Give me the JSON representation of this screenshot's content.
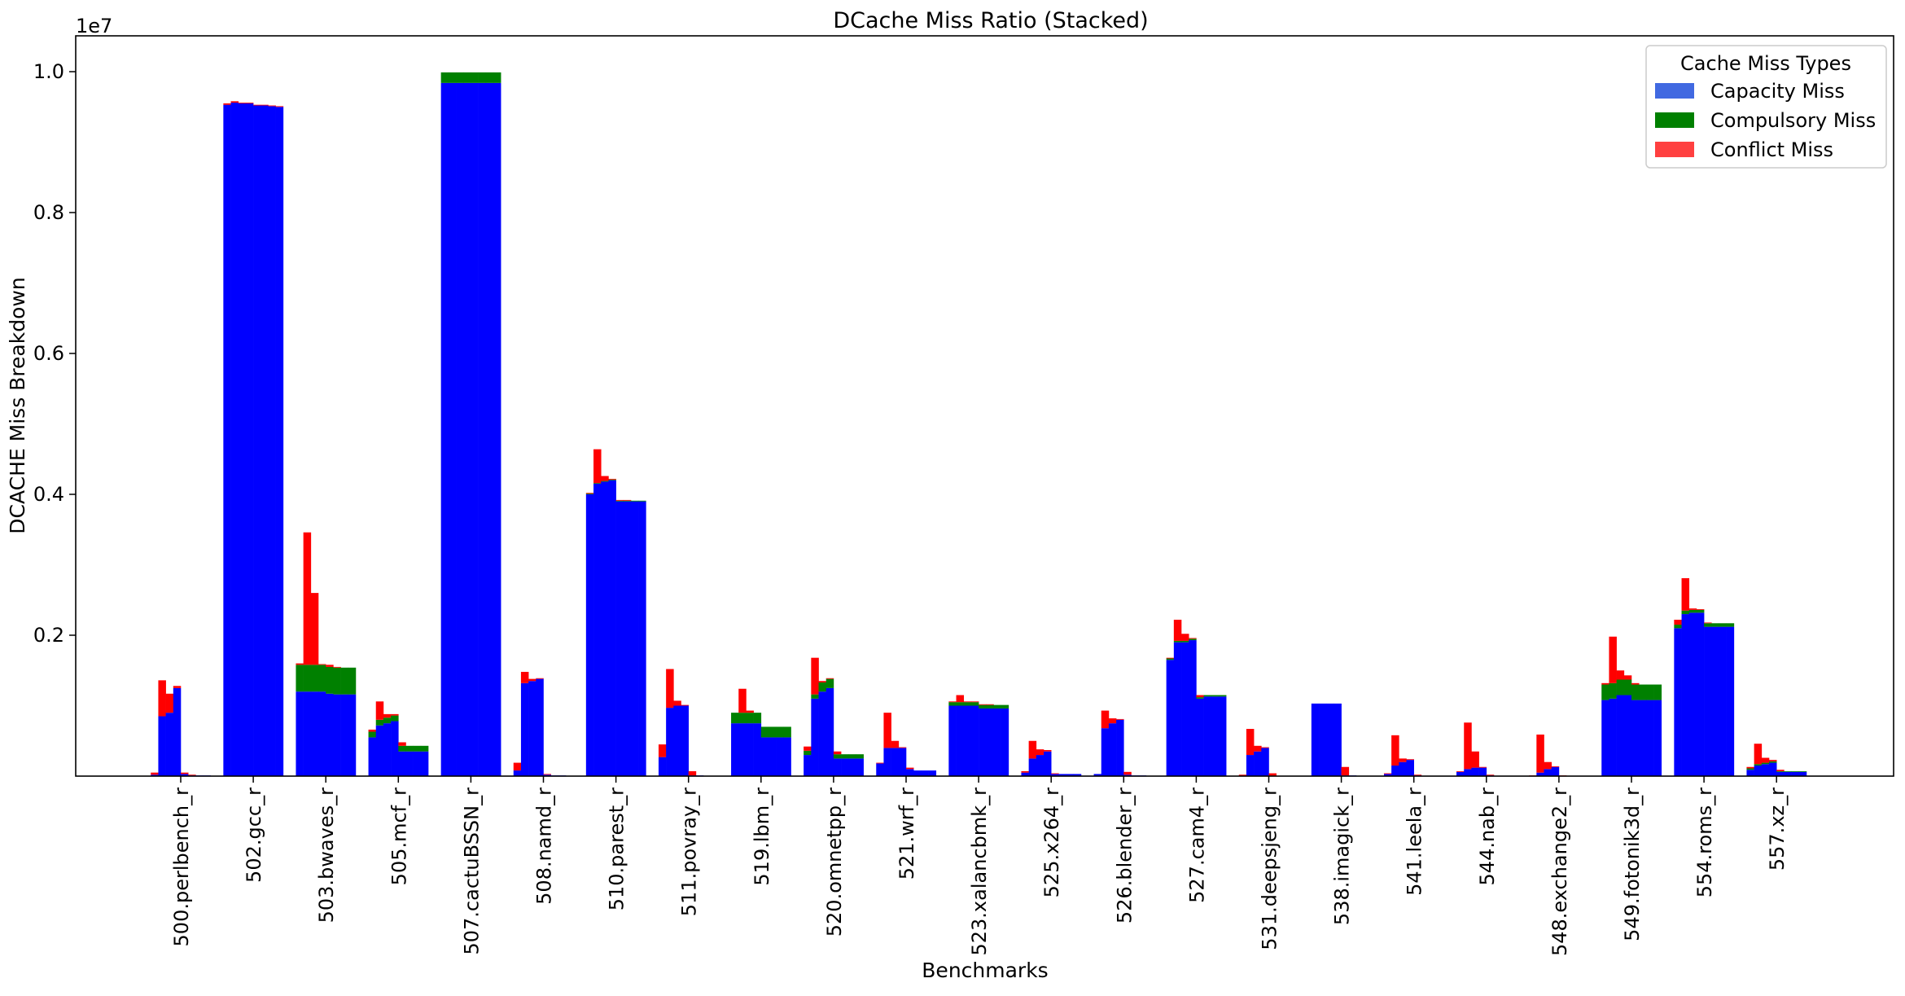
{
  "chart_data": {
    "type": "bar",
    "stacked": true,
    "title": "DCache Miss Ratio (Stacked)",
    "xlabel": "Benchmarks",
    "ylabel": "DCACHE Miss Breakdown",
    "y_offset_label": "1e7",
    "ylim": [
      0,
      1.05
    ],
    "yticks": [
      0.2,
      0.4,
      0.6,
      0.8,
      1.0
    ],
    "ytick_labels": [
      "0.2",
      "0.4",
      "0.6",
      "0.8",
      "1.0"
    ],
    "bars_per_group": 8,
    "legend": {
      "title": "Cache Miss Types",
      "placement": "top-right",
      "entries": [
        {
          "label": "Capacity Miss",
          "color": "#4169e1"
        },
        {
          "label": "Compulsory Miss",
          "color": "#008000"
        },
        {
          "label": "Conflict Miss",
          "color": "#ff4040"
        }
      ]
    },
    "series_colors": {
      "capacity": "#0000ff",
      "compulsory": "#008000",
      "conflict": "#ff0000"
    },
    "categories": [
      "500.perlbench_r",
      "502.gcc_r",
      "503.bwaves_r",
      "505.mcf_r",
      "507.cactuBSSN_r",
      "508.namd_r",
      "510.parest_r",
      "511.povray_r",
      "519.lbm_r",
      "520.omnetpp_r",
      "521.wrf_r",
      "523.xalancbmk_r",
      "525.x264_r",
      "526.blender_r",
      "527.cam4_r",
      "531.deepsjeng_r",
      "538.imagick_r",
      "541.leela_r",
      "544.nab_r",
      "548.exchange2_r",
      "549.fotonik3d_r",
      "554.roms_r",
      "557.xz_r"
    ],
    "groups": [
      {
        "name": "500.perlbench_r",
        "capacity": [
          0.002,
          0.085,
          0.09,
          0.125,
          0.003,
          0.001,
          0.001,
          0.001
        ],
        "compulsory": [
          0,
          0,
          0,
          0,
          0,
          0,
          0,
          0
        ],
        "conflict": [
          0.003,
          0.051,
          0.027,
          0.003,
          0.002,
          0.001,
          0,
          0
        ]
      },
      {
        "name": "502.gcc_r",
        "capacity": [
          0.953,
          0.956,
          0.955,
          0.955,
          0.952,
          0.952,
          0.951,
          0.95
        ],
        "compulsory": [
          0,
          0,
          0,
          0,
          0,
          0,
          0,
          0
        ],
        "conflict": [
          0.002,
          0.002,
          0.001,
          0.001,
          0.001,
          0.001,
          0.001,
          0.001
        ]
      },
      {
        "name": "503.bwaves_r",
        "capacity": [
          0.12,
          0.12,
          0.12,
          0.12,
          0.117,
          0.116,
          0.116,
          0.116
        ],
        "compulsory": [
          0.038,
          0.038,
          0.038,
          0.038,
          0.038,
          0.038,
          0.038,
          0.038
        ],
        "conflict": [
          0.002,
          0.188,
          0.102,
          0.001,
          0.003,
          0.001,
          0,
          0
        ]
      },
      {
        "name": "505.mcf_r",
        "capacity": [
          0.055,
          0.072,
          0.075,
          0.078,
          0.035,
          0.035,
          0.035,
          0.035
        ],
        "compulsory": [
          0.008,
          0.008,
          0.008,
          0.008,
          0.008,
          0.008,
          0.008,
          0.008
        ],
        "conflict": [
          0.003,
          0.026,
          0.005,
          0.002,
          0.005,
          0,
          0,
          0
        ]
      },
      {
        "name": "507.cactuBSSN_r",
        "capacity": [
          0.984,
          0.984,
          0.984,
          0.984,
          0.984,
          0.984,
          0.984,
          0.984
        ],
        "compulsory": [
          0.015,
          0.015,
          0.015,
          0.015,
          0.015,
          0.015,
          0.015,
          0.015
        ],
        "conflict": [
          0,
          0,
          0,
          0,
          0,
          0,
          0,
          0
        ]
      },
      {
        "name": "508.namd_r",
        "capacity": [
          0.008,
          0.132,
          0.135,
          0.138,
          0.002,
          0.001,
          0.001,
          0
        ],
        "compulsory": [
          0,
          0,
          0,
          0,
          0,
          0,
          0,
          0
        ],
        "conflict": [
          0.011,
          0.016,
          0.003,
          0.001,
          0.001,
          0,
          0,
          0
        ]
      },
      {
        "name": "510.parest_r",
        "capacity": [
          0.4,
          0.415,
          0.418,
          0.42,
          0.39,
          0.39,
          0.39,
          0.39
        ],
        "compulsory": [
          0.001,
          0.001,
          0.001,
          0.001,
          0.001,
          0.001,
          0.001,
          0.001
        ],
        "conflict": [
          0.001,
          0.048,
          0.007,
          0.001,
          0.001,
          0.001,
          0,
          0
        ]
      },
      {
        "name": "511.povray_r",
        "capacity": [
          0.027,
          0.097,
          0.1,
          0.1,
          0.001,
          0.001,
          0,
          0
        ],
        "compulsory": [
          0,
          0,
          0,
          0,
          0,
          0,
          0,
          0
        ],
        "conflict": [
          0.018,
          0.055,
          0.007,
          0.001,
          0.006,
          0,
          0,
          0
        ]
      },
      {
        "name": "519.lbm_r",
        "capacity": [
          0.075,
          0.075,
          0.075,
          0.075,
          0.055,
          0.055,
          0.055,
          0.055
        ],
        "compulsory": [
          0.015,
          0.015,
          0.015,
          0.015,
          0.015,
          0.015,
          0.015,
          0.015
        ],
        "conflict": [
          0,
          0.034,
          0.003,
          0,
          0,
          0,
          0,
          0
        ]
      },
      {
        "name": "520.omnetpp_r",
        "capacity": [
          0.03,
          0.11,
          0.12,
          0.125,
          0.025,
          0.025,
          0.025,
          0.025
        ],
        "compulsory": [
          0.006,
          0.006,
          0.013,
          0.013,
          0.006,
          0.006,
          0.006,
          0.006
        ],
        "conflict": [
          0.006,
          0.052,
          0.002,
          0.001,
          0.004,
          0,
          0,
          0
        ]
      },
      {
        "name": "521.wrf_r",
        "capacity": [
          0.018,
          0.04,
          0.04,
          0.04,
          0.01,
          0.008,
          0.008,
          0.008
        ],
        "compulsory": [
          0,
          0,
          0,
          0,
          0,
          0,
          0,
          0
        ],
        "conflict": [
          0.001,
          0.05,
          0.01,
          0.001,
          0.002,
          0,
          0,
          0
        ]
      },
      {
        "name": "523.xalancbmk_r",
        "capacity": [
          0.1,
          0.1,
          0.1,
          0.1,
          0.096,
          0.096,
          0.096,
          0.096
        ],
        "compulsory": [
          0.005,
          0.005,
          0.005,
          0.005,
          0.005,
          0.005,
          0.005,
          0.005
        ],
        "conflict": [
          0.001,
          0.01,
          0.001,
          0.001,
          0.001,
          0.001,
          0,
          0
        ]
      },
      {
        "name": "525.x264_r",
        "capacity": [
          0.005,
          0.025,
          0.03,
          0.035,
          0.003,
          0.003,
          0.003,
          0.003
        ],
        "compulsory": [
          0,
          0,
          0,
          0,
          0,
          0,
          0,
          0
        ],
        "conflict": [
          0.002,
          0.025,
          0.008,
          0.002,
          0.001,
          0,
          0,
          0
        ]
      },
      {
        "name": "526.blender_r",
        "capacity": [
          0.003,
          0.068,
          0.075,
          0.08,
          0.002,
          0.001,
          0.001,
          0
        ],
        "compulsory": [
          0,
          0,
          0,
          0,
          0,
          0,
          0,
          0
        ],
        "conflict": [
          0,
          0.025,
          0.007,
          0.001,
          0.004,
          0,
          0,
          0
        ]
      },
      {
        "name": "527.cam4_r",
        "capacity": [
          0.165,
          0.19,
          0.19,
          0.193,
          0.11,
          0.113,
          0.113,
          0.113
        ],
        "compulsory": [
          0.002,
          0.002,
          0.002,
          0.002,
          0.002,
          0.002,
          0.002,
          0.002
        ],
        "conflict": [
          0.001,
          0.03,
          0.01,
          0.001,
          0.003,
          0,
          0,
          0
        ]
      },
      {
        "name": "531.deepsjeng_r",
        "capacity": [
          0,
          0.03,
          0.035,
          0.04,
          0,
          0,
          0,
          0
        ],
        "compulsory": [
          0,
          0,
          0,
          0,
          0,
          0,
          0,
          0
        ],
        "conflict": [
          0.002,
          0.037,
          0.008,
          0.001,
          0.004,
          0,
          0,
          0
        ]
      },
      {
        "name": "538.imagick_r",
        "capacity": [
          0.103,
          0.103,
          0.103,
          0.103,
          0.001,
          0.001,
          0,
          0
        ],
        "compulsory": [
          0,
          0,
          0,
          0,
          0,
          0,
          0,
          0
        ],
        "conflict": [
          0,
          0,
          0,
          0,
          0.012,
          0,
          0,
          0
        ]
      },
      {
        "name": "541.leela_r",
        "capacity": [
          0.003,
          0.015,
          0.02,
          0.023,
          0.001,
          0,
          0,
          0
        ],
        "compulsory": [
          0,
          0,
          0,
          0,
          0,
          0,
          0,
          0
        ],
        "conflict": [
          0.001,
          0.043,
          0.005,
          0.001,
          0.001,
          0,
          0,
          0
        ]
      },
      {
        "name": "544.nab_r",
        "capacity": [
          0.006,
          0.01,
          0.012,
          0.012,
          0.001,
          0,
          0,
          0
        ],
        "compulsory": [
          0,
          0,
          0,
          0,
          0,
          0,
          0,
          0
        ],
        "conflict": [
          0.001,
          0.066,
          0.023,
          0.001,
          0.001,
          0,
          0,
          0
        ]
      },
      {
        "name": "548.exchange2_r",
        "capacity": [
          0,
          0.005,
          0.01,
          0.013,
          0,
          0,
          0,
          0
        ],
        "compulsory": [
          0,
          0,
          0,
          0,
          0,
          0,
          0,
          0
        ],
        "conflict": [
          0.001,
          0.054,
          0.01,
          0.001,
          0.001,
          0,
          0,
          0
        ]
      },
      {
        "name": "549.fotonik3d_r",
        "capacity": [
          0.108,
          0.11,
          0.115,
          0.115,
          0.108,
          0.108,
          0.108,
          0.108
        ],
        "compulsory": [
          0.022,
          0.022,
          0.022,
          0.022,
          0.022,
          0.022,
          0.022,
          0.022
        ],
        "conflict": [
          0.002,
          0.066,
          0.013,
          0.006,
          0.002,
          0,
          0,
          0
        ]
      },
      {
        "name": "554.roms_r",
        "capacity": [
          0.21,
          0.23,
          0.232,
          0.232,
          0.212,
          0.212,
          0.212,
          0.212
        ],
        "compulsory": [
          0.005,
          0.005,
          0.004,
          0.004,
          0.005,
          0.005,
          0.005,
          0.005
        ],
        "conflict": [
          0.007,
          0.046,
          0.002,
          0.001,
          0.001,
          0,
          0,
          0
        ]
      },
      {
        "name": "557.xz_r",
        "capacity": [
          0.009,
          0.015,
          0.017,
          0.019,
          0.006,
          0.006,
          0.006,
          0.006
        ],
        "compulsory": [
          0.002,
          0.002,
          0.002,
          0.002,
          0.001,
          0.001,
          0.001,
          0.001
        ],
        "conflict": [
          0.002,
          0.029,
          0.007,
          0.002,
          0.002,
          0,
          0,
          0
        ]
      }
    ]
  }
}
